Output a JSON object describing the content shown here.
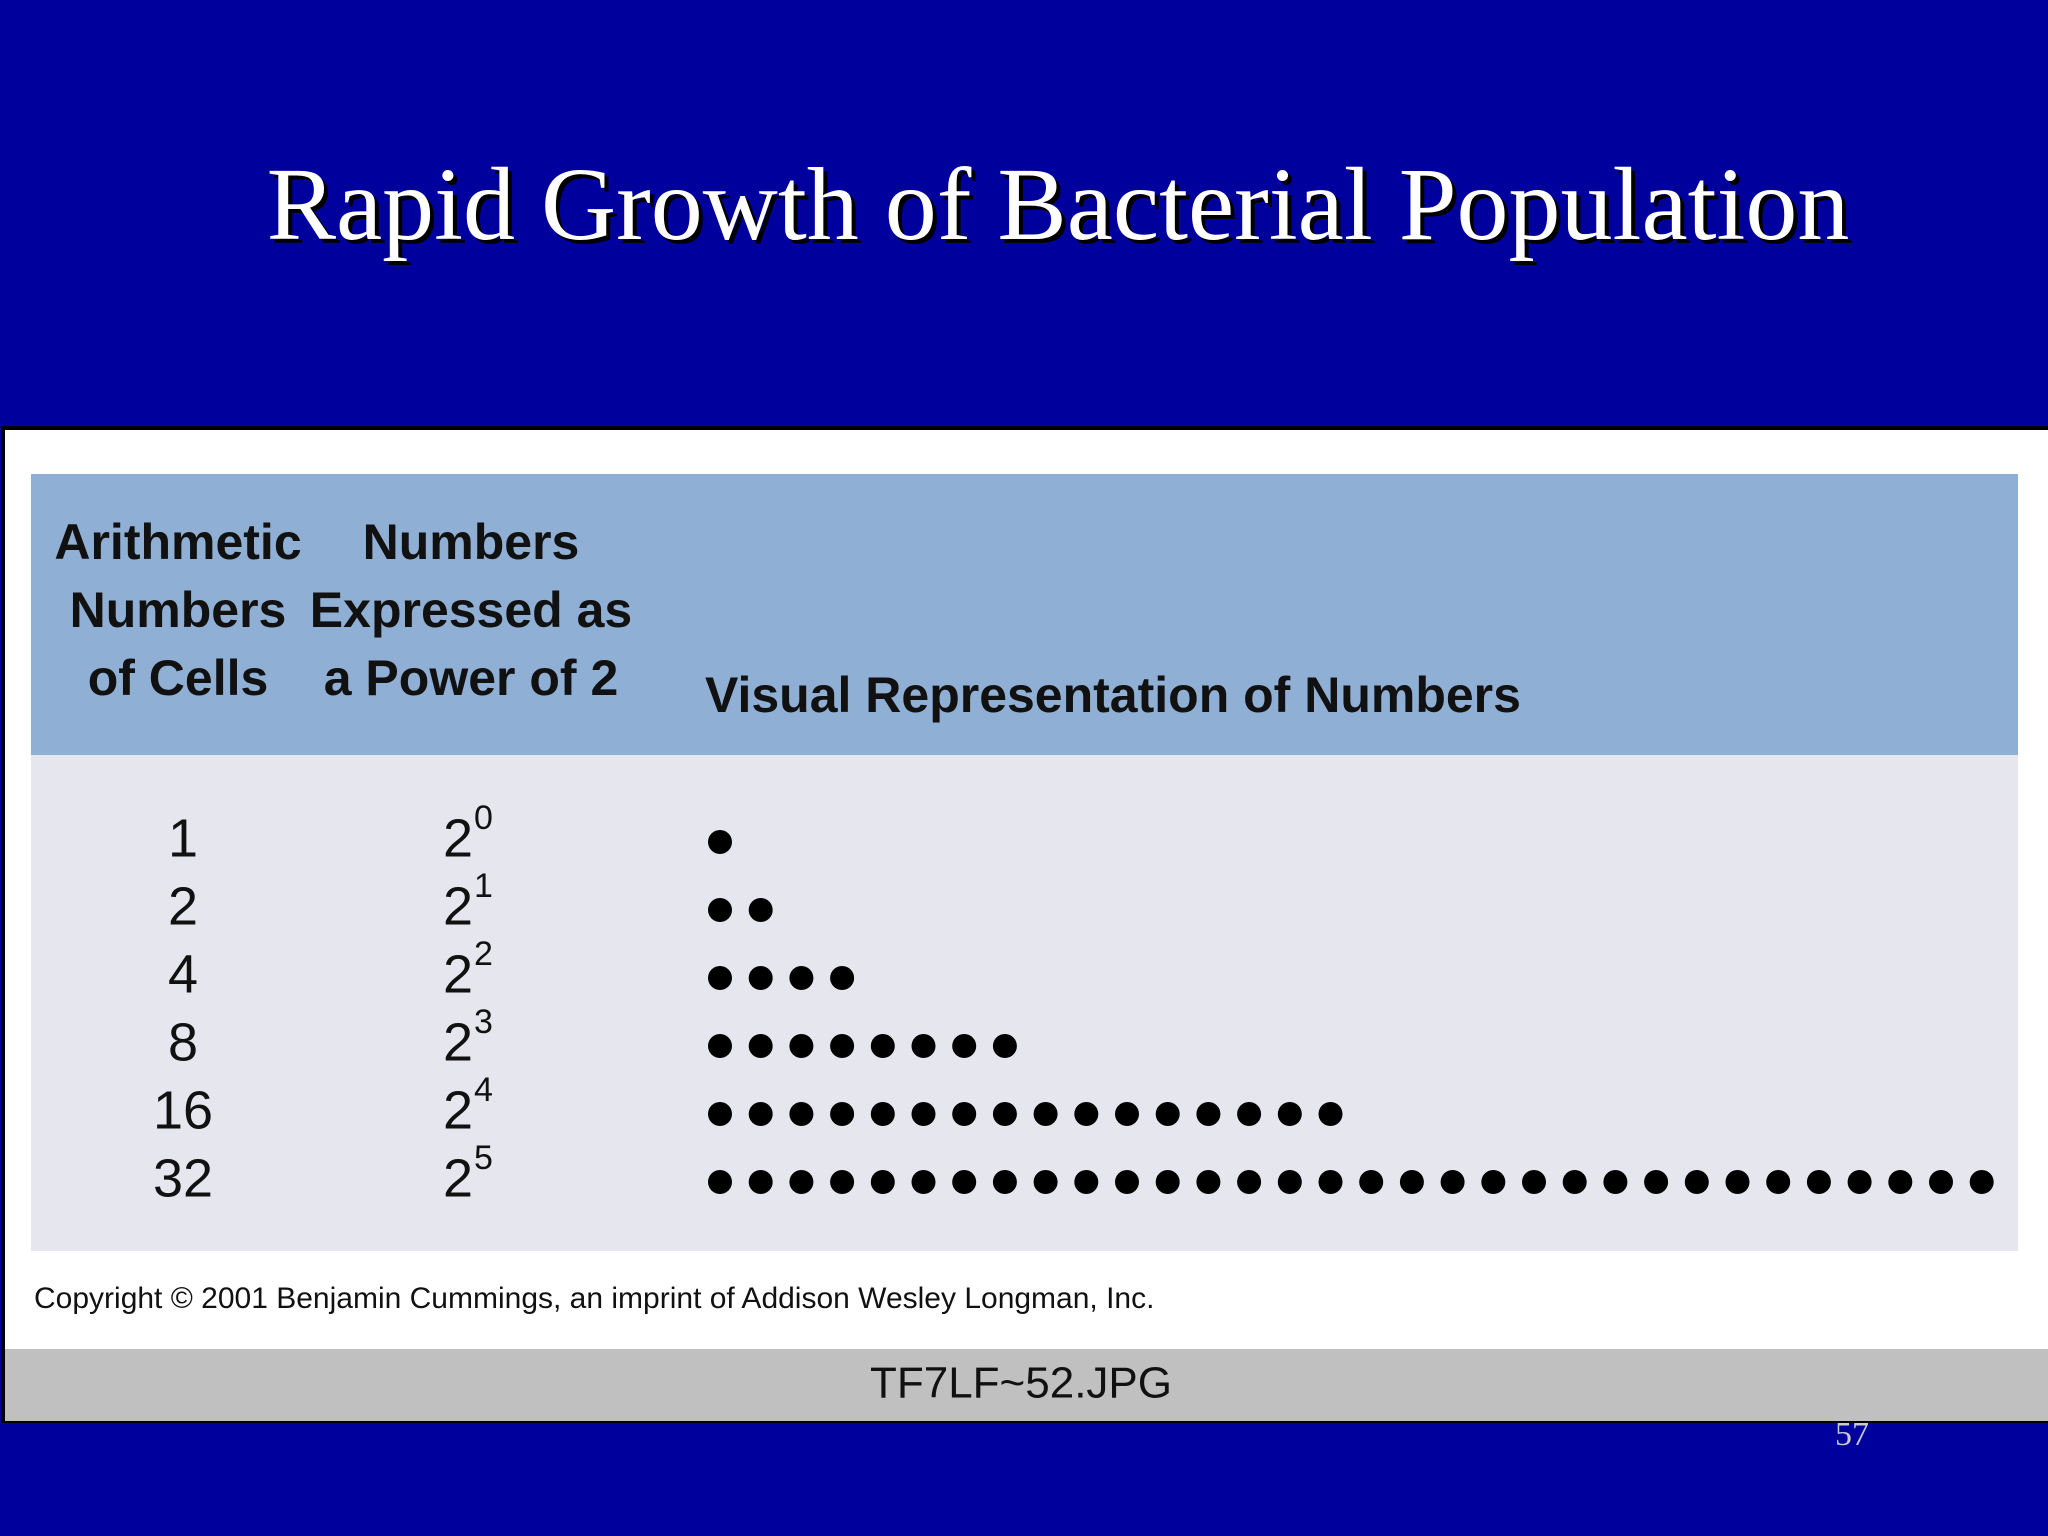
{
  "title": "Rapid Growth of Bacterial Population",
  "table": {
    "headers": [
      [
        "Arithmetic",
        "Numbers",
        "of Cells"
      ],
      [
        "Numbers",
        "Expressed as",
        "a Power of 2"
      ],
      [
        "Visual Representation of Numbers"
      ]
    ],
    "rows": [
      [
        1,
        2,
        0
      ],
      [
        2,
        2,
        1
      ],
      [
        4,
        2,
        2
      ],
      [
        8,
        2,
        3
      ],
      [
        16,
        2,
        4
      ],
      [
        32,
        2,
        5
      ]
    ]
  },
  "copyright": "Copyright © 2001 Benjamin Cummings, an imprint of Addison Wesley Longman, Inc.",
  "caption": "TF7LF~52.JPG",
  "page_number": "57"
}
